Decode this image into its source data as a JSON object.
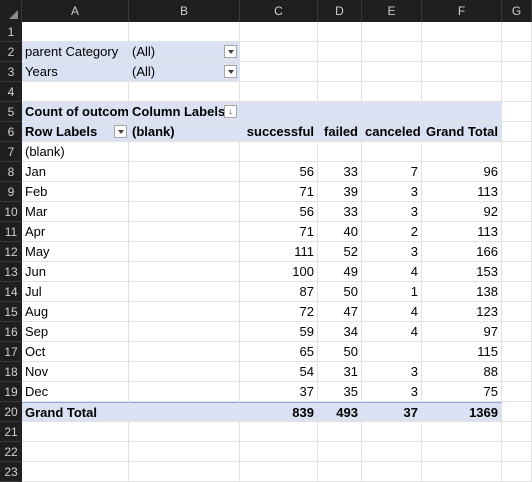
{
  "columns": [
    "A",
    "B",
    "C",
    "D",
    "E",
    "F",
    "G"
  ],
  "rows": [
    "1",
    "2",
    "3",
    "4",
    "5",
    "6",
    "7",
    "8",
    "9",
    "10",
    "11",
    "12",
    "13",
    "14",
    "15",
    "16",
    "17",
    "18",
    "19",
    "20",
    "21",
    "22",
    "23"
  ],
  "filters": [
    {
      "label": "parent Category",
      "value": "(All)"
    },
    {
      "label": "Years",
      "value": "(All)"
    }
  ],
  "pivot": {
    "count_label": "Count of outcom",
    "column_labels": "Column Labels",
    "row_labels": "Row Labels",
    "blank_header": "(blank)",
    "headers": [
      "successful",
      "failed",
      "canceled",
      "Grand Total"
    ],
    "blank_row": "(blank)",
    "data": [
      {
        "month": "Jan",
        "successful": "56",
        "failed": "33",
        "canceled": "7",
        "total": "96"
      },
      {
        "month": "Feb",
        "successful": "71",
        "failed": "39",
        "canceled": "3",
        "total": "113"
      },
      {
        "month": "Mar",
        "successful": "56",
        "failed": "33",
        "canceled": "3",
        "total": "92"
      },
      {
        "month": "Apr",
        "successful": "71",
        "failed": "40",
        "canceled": "2",
        "total": "113"
      },
      {
        "month": "May",
        "successful": "111",
        "failed": "52",
        "canceled": "3",
        "total": "166"
      },
      {
        "month": "Jun",
        "successful": "100",
        "failed": "49",
        "canceled": "4",
        "total": "153"
      },
      {
        "month": "Jul",
        "successful": "87",
        "failed": "50",
        "canceled": "1",
        "total": "138"
      },
      {
        "month": "Aug",
        "successful": "72",
        "failed": "47",
        "canceled": "4",
        "total": "123"
      },
      {
        "month": "Sep",
        "successful": "59",
        "failed": "34",
        "canceled": "4",
        "total": "97"
      },
      {
        "month": "Oct",
        "successful": "65",
        "failed": "50",
        "canceled": "",
        "total": "115"
      },
      {
        "month": "Nov",
        "successful": "54",
        "failed": "31",
        "canceled": "3",
        "total": "88"
      },
      {
        "month": "Dec",
        "successful": "37",
        "failed": "35",
        "canceled": "3",
        "total": "75"
      }
    ],
    "grand_total": {
      "label": "Grand Total",
      "successful": "839",
      "failed": "493",
      "canceled": "37",
      "total": "1369"
    }
  }
}
